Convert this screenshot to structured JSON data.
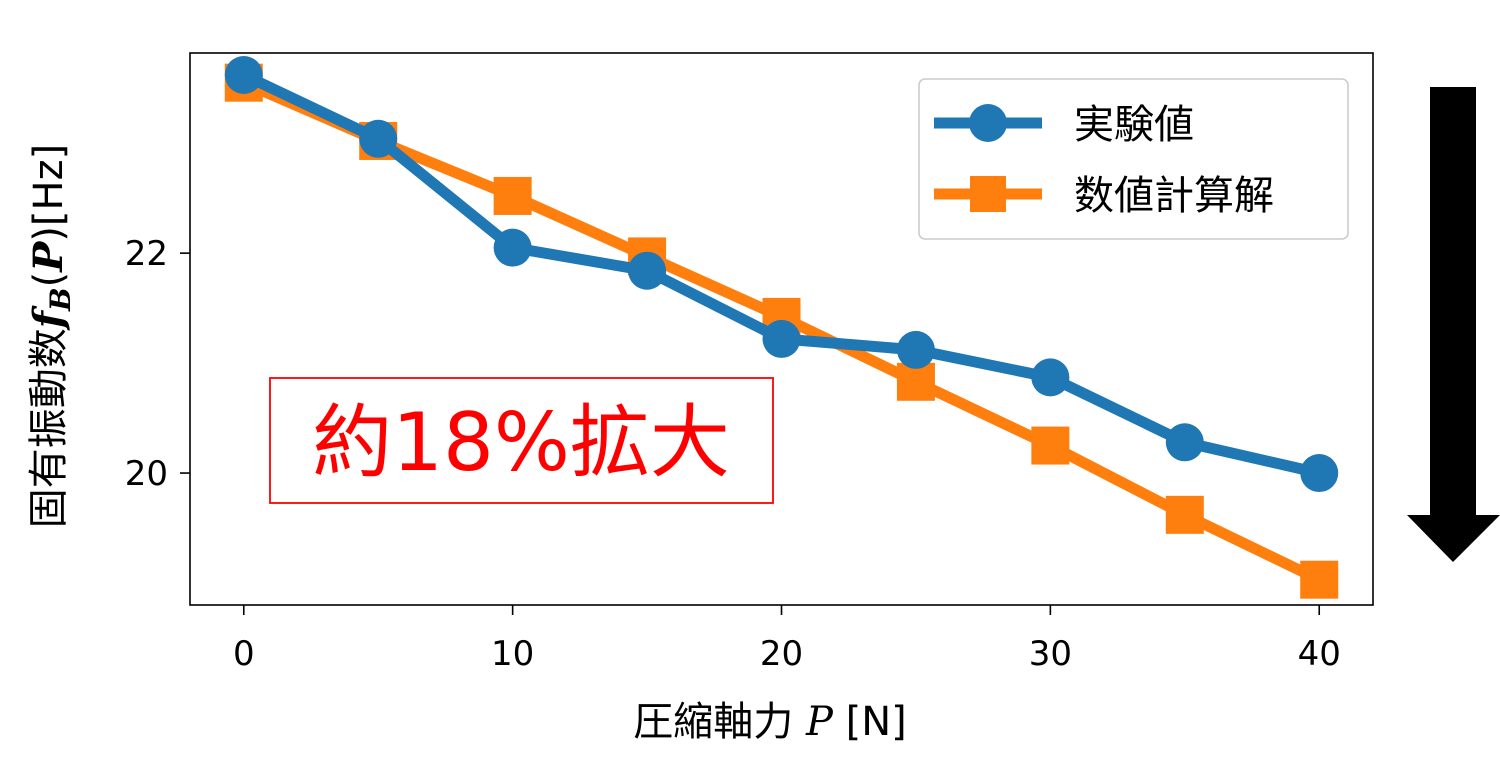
{
  "chart_data": {
    "type": "line",
    "x": [
      0,
      5,
      10,
      15,
      20,
      25,
      30,
      35,
      40
    ],
    "series": [
      {
        "name": "実験値",
        "marker": "circle",
        "color": "#1f77b4",
        "values": [
          23.62,
          23.04,
          22.05,
          21.84,
          21.22,
          21.12,
          20.87,
          20.28,
          20.0
        ]
      },
      {
        "name": "数値計算解",
        "marker": "square",
        "color": "#ff7f0e",
        "values": [
          23.55,
          23.02,
          22.52,
          21.97,
          21.42,
          20.83,
          20.25,
          19.62,
          19.03
        ]
      }
    ],
    "xlim": [
      -2,
      42
    ],
    "ylim": [
      18.8,
      23.82
    ],
    "xticks": [
      0,
      10,
      20,
      30,
      40
    ],
    "yticks": [
      20,
      22
    ],
    "xlabel": {
      "prefix": "圧縮軸力 ",
      "symbol": "P",
      "unit": " [N]"
    },
    "ylabel": {
      "prefix": "固有振動数",
      "symbol_f": "f",
      "sub": "B",
      "open": "(",
      "symbol_p": "P",
      "close": ")",
      "unit": "[Hz]"
    },
    "legend_position": "top-right",
    "grid": false,
    "annotation": {
      "text": "約18%拡大",
      "color": "#ff0000"
    },
    "arrow": {
      "direction": "down",
      "color": "#000000"
    }
  }
}
